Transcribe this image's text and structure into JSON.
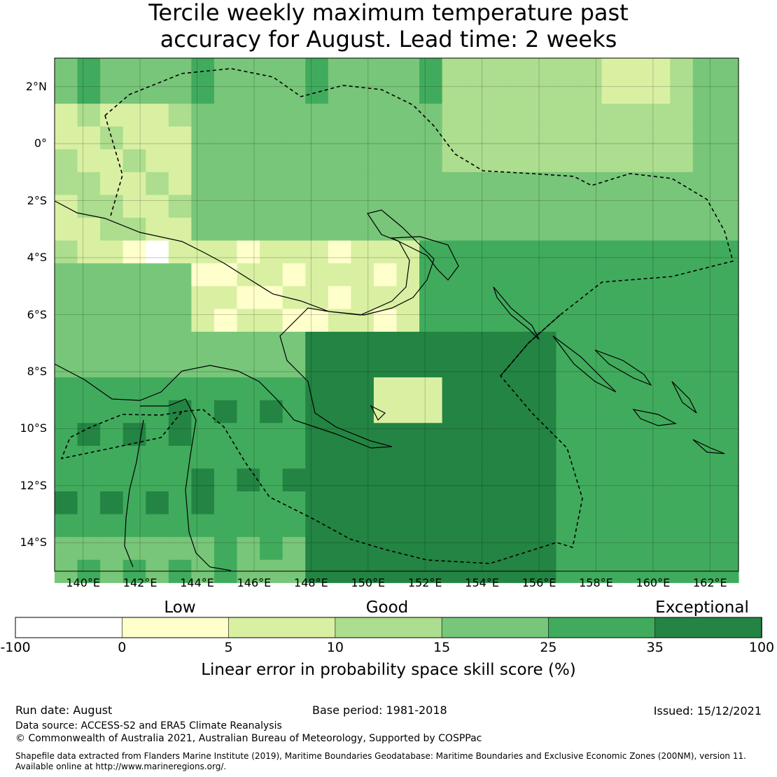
{
  "title": {
    "line1": "Tercile weekly maximum temperature past",
    "line2": "accuracy for August. Lead time: 2 weeks"
  },
  "map": {
    "lat_labels": [
      "2°N",
      "0°",
      "2°S",
      "4°S",
      "6°S",
      "8°S",
      "10°S",
      "12°S",
      "14°S"
    ],
    "lon_labels": [
      "140°E",
      "142°E",
      "144°E",
      "146°E",
      "148°E",
      "150°E",
      "152°E",
      "154°E",
      "156°E",
      "158°E",
      "160°E",
      "162°E"
    ],
    "lon_range": [
      139,
      163
    ],
    "lat_range": [
      -15,
      3
    ],
    "cell_size_deg": 0.8
  },
  "colorbar": {
    "categories": [
      "Low",
      "Good",
      "Exceptional"
    ],
    "ticks": [
      "-100",
      "0",
      "5",
      "10",
      "15",
      "25",
      "35",
      "100"
    ],
    "colors": [
      "#ffffff",
      "#ffffcc",
      "#d9f0a3",
      "#addd8e",
      "#78c679",
      "#41ab5d",
      "#238443"
    ],
    "label": "Linear error in probability space skill score (%)"
  },
  "footer": {
    "run_date": "Run date: August",
    "base_period": "Base period: 1981-2018",
    "issued": "Issued: 15/12/2021",
    "data_source": "Data source: ACCESS-S2 and ERA5 Climate Reanalysis",
    "copyright": "© Commonwealth of Australia 2021, Australian Bureau of Meteorology, Supported by COSPPac",
    "shapefile_line1": "Shapefile data extracted from Flanders Marine Institute (2019), Maritime Boundaries Geodatabase: Maritime Boundaries and Exclusive Economic Zones (200NM), version 11.",
    "shapefile_line2": "Available online at http://www.marineregions.org/."
  }
}
